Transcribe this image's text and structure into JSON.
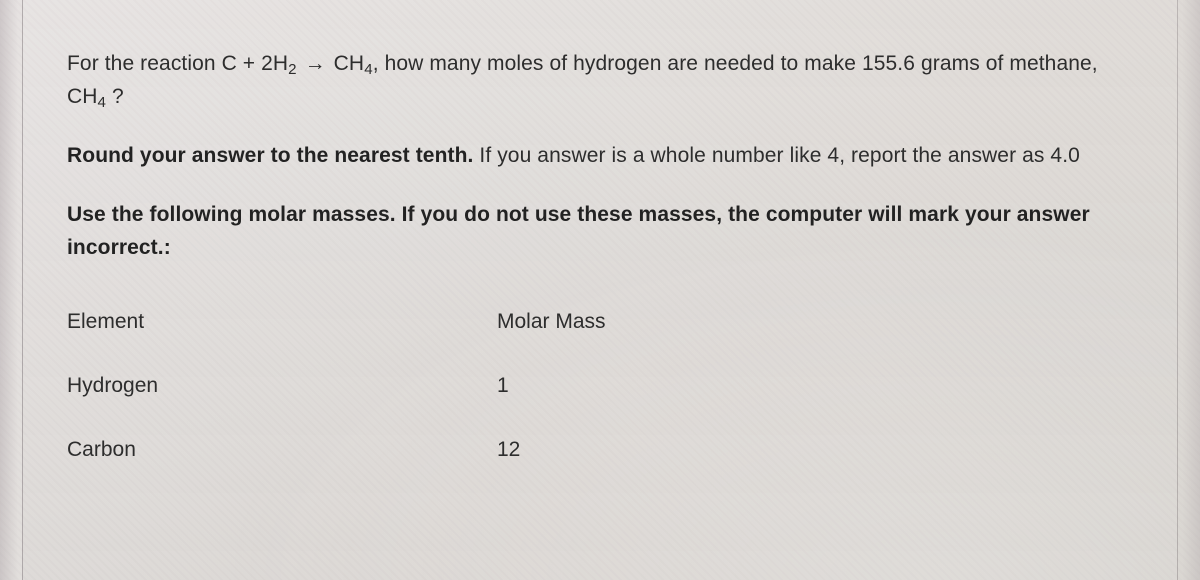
{
  "question": {
    "line1_prefix": "For the reaction ",
    "reaction_lhs_c": "C",
    "plus": " + ",
    "reaction_lhs_h2_coeff": "2H",
    "reaction_lhs_h2_sub": "2",
    "arrow": "→",
    "reaction_rhs_ch": "CH",
    "reaction_rhs_ch_sub": "4",
    "line1_mid": ", how many moles of hydrogen are needed to make  ",
    "mass_value": "155.6",
    "line1_tail": " grams of methane, CH",
    "ch4_sub": "4",
    "line1_q": " ?"
  },
  "instruction1": {
    "bold": "Round your answer to the nearest tenth.",
    "rest": " If you answer is a whole number like 4, report the answer as 4.0"
  },
  "instruction2": {
    "bold": "Use the following molar masses. If you do not use these masses, the computer will mark your answer incorrect.:"
  },
  "table": {
    "header_element": "Element",
    "header_mass": "Molar Mass",
    "rows": [
      {
        "element": "Hydrogen",
        "mass": "1"
      },
      {
        "element": "Carbon",
        "mass": "12"
      }
    ]
  }
}
